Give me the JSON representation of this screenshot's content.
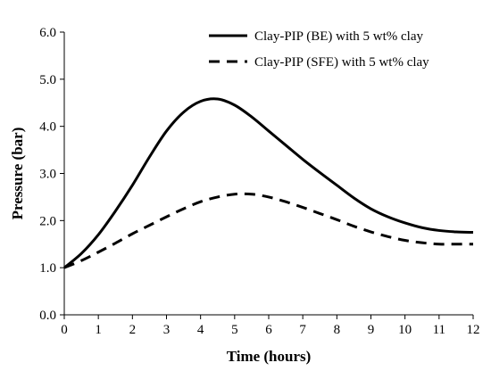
{
  "chart_data": {
    "type": "line",
    "title": "",
    "xlabel": "Time (hours)",
    "ylabel": "Pressure (bar)",
    "xlim": [
      0,
      12
    ],
    "ylim": [
      0,
      6
    ],
    "x_ticks": [
      "0",
      "1",
      "2",
      "3",
      "4",
      "5",
      "6",
      "7",
      "8",
      "9",
      "10",
      "11",
      "12"
    ],
    "y_ticks": [
      "0.0",
      "1.0",
      "2.0",
      "3.0",
      "4.0",
      "5.0",
      "6.0"
    ],
    "grid": false,
    "legend_position": "top-right",
    "series": [
      {
        "name": "Clay-PIP (BE) with 5 wt% clay",
        "style": "solid",
        "color": "#000000",
        "x": [
          0,
          0.5,
          1,
          1.5,
          2,
          2.5,
          3,
          3.5,
          4,
          4.5,
          5,
          5.5,
          6,
          6.5,
          7,
          7.5,
          8,
          8.5,
          9,
          9.5,
          10,
          10.5,
          11,
          11.5,
          12
        ],
        "y": [
          1.0,
          1.3,
          1.7,
          2.2,
          2.75,
          3.35,
          3.9,
          4.3,
          4.53,
          4.58,
          4.45,
          4.2,
          3.9,
          3.6,
          3.3,
          3.02,
          2.75,
          2.48,
          2.25,
          2.08,
          1.95,
          1.85,
          1.79,
          1.76,
          1.75
        ]
      },
      {
        "name": "Clay-PIP (SFE) with 5 wt% clay",
        "style": "dashed",
        "color": "#000000",
        "x": [
          0,
          0.5,
          1,
          1.5,
          2,
          2.5,
          3,
          3.5,
          4,
          4.5,
          5,
          5.5,
          6,
          6.5,
          7,
          7.5,
          8,
          8.5,
          9,
          9.5,
          10,
          10.5,
          11,
          11.5,
          12
        ],
        "y": [
          1.0,
          1.15,
          1.33,
          1.52,
          1.72,
          1.9,
          2.08,
          2.25,
          2.4,
          2.5,
          2.56,
          2.56,
          2.5,
          2.4,
          2.28,
          2.15,
          2.02,
          1.88,
          1.76,
          1.66,
          1.58,
          1.53,
          1.5,
          1.5,
          1.5
        ]
      }
    ]
  }
}
